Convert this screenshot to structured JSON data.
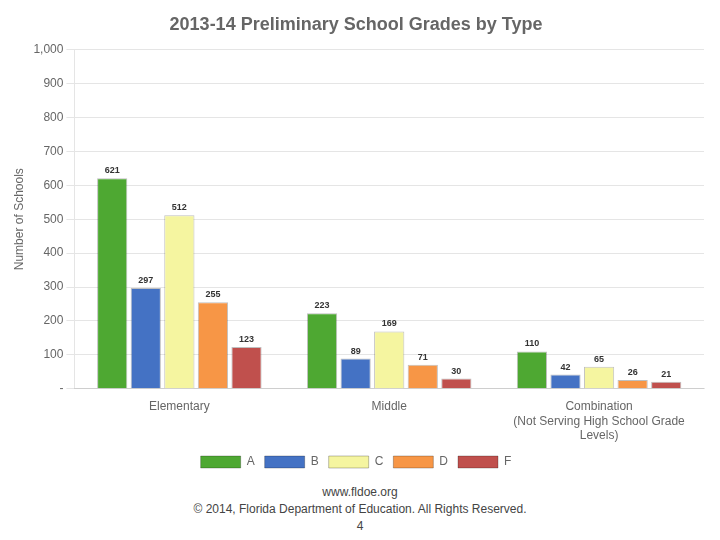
{
  "chart_data": {
    "type": "bar",
    "title": "2013-14 Preliminary School Grades by Type",
    "y_label": "Number of Schools",
    "categories": [
      "Elementary",
      "Middle",
      "Combination\n(Not Serving High School Grade\nLevels)"
    ],
    "series": [
      {
        "name": "A",
        "color": "#4EA832",
        "values": [
          621,
          223,
          110
        ]
      },
      {
        "name": "B",
        "color": "#4472C4",
        "values": [
          297,
          89,
          42
        ]
      },
      {
        "name": "C",
        "color": "#F5F5A0",
        "values": [
          512,
          169,
          65
        ]
      },
      {
        "name": "D",
        "color": "#F79646",
        "values": [
          255,
          71,
          26
        ]
      },
      {
        "name": "F",
        "color": "#C0504D",
        "values": [
          123,
          30,
          21
        ]
      }
    ],
    "ylim": [
      0,
      1000
    ],
    "yticks": [
      {
        "value": 0,
        "label": "-"
      },
      100,
      200,
      300,
      400,
      500,
      600,
      700,
      800,
      900,
      {
        "value": 1000,
        "label": "1,000"
      }
    ],
    "grid": true,
    "legend": "bottom",
    "data_labels": true,
    "annotations": [
      "www.fldoe.org",
      "© 2014, Florida Department of Education. All Rights Reserved.",
      "4"
    ]
  }
}
